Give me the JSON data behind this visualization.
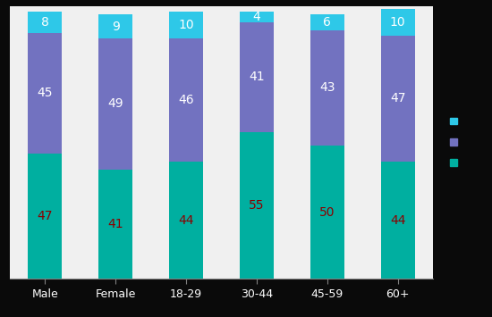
{
  "categories": [
    "Male",
    "Female",
    "18-29",
    "30-44",
    "45-59",
    "60+"
  ],
  "bottom_values": [
    47,
    41,
    44,
    55,
    50,
    44
  ],
  "middle_values": [
    45,
    49,
    46,
    41,
    43,
    47
  ],
  "top_values": [
    8,
    9,
    10,
    4,
    6,
    10
  ],
  "bottom_color": "#00AFA0",
  "middle_color": "#7272C0",
  "top_color": "#2EC8E8",
  "bar_width": 0.48,
  "text_color_bottom": "#8B0000",
  "text_color_middle": "#ffffff",
  "text_color_top": "#ffffff",
  "plot_bg_color": "#f0f0f0",
  "fig_bg_color": "#0a0a0a",
  "legend_colors": [
    "#2EC8E8",
    "#7272C0",
    "#00AFA0"
  ],
  "ylim": [
    0,
    102
  ],
  "figsize": [
    5.5,
    3.55
  ],
  "dpi": 100
}
